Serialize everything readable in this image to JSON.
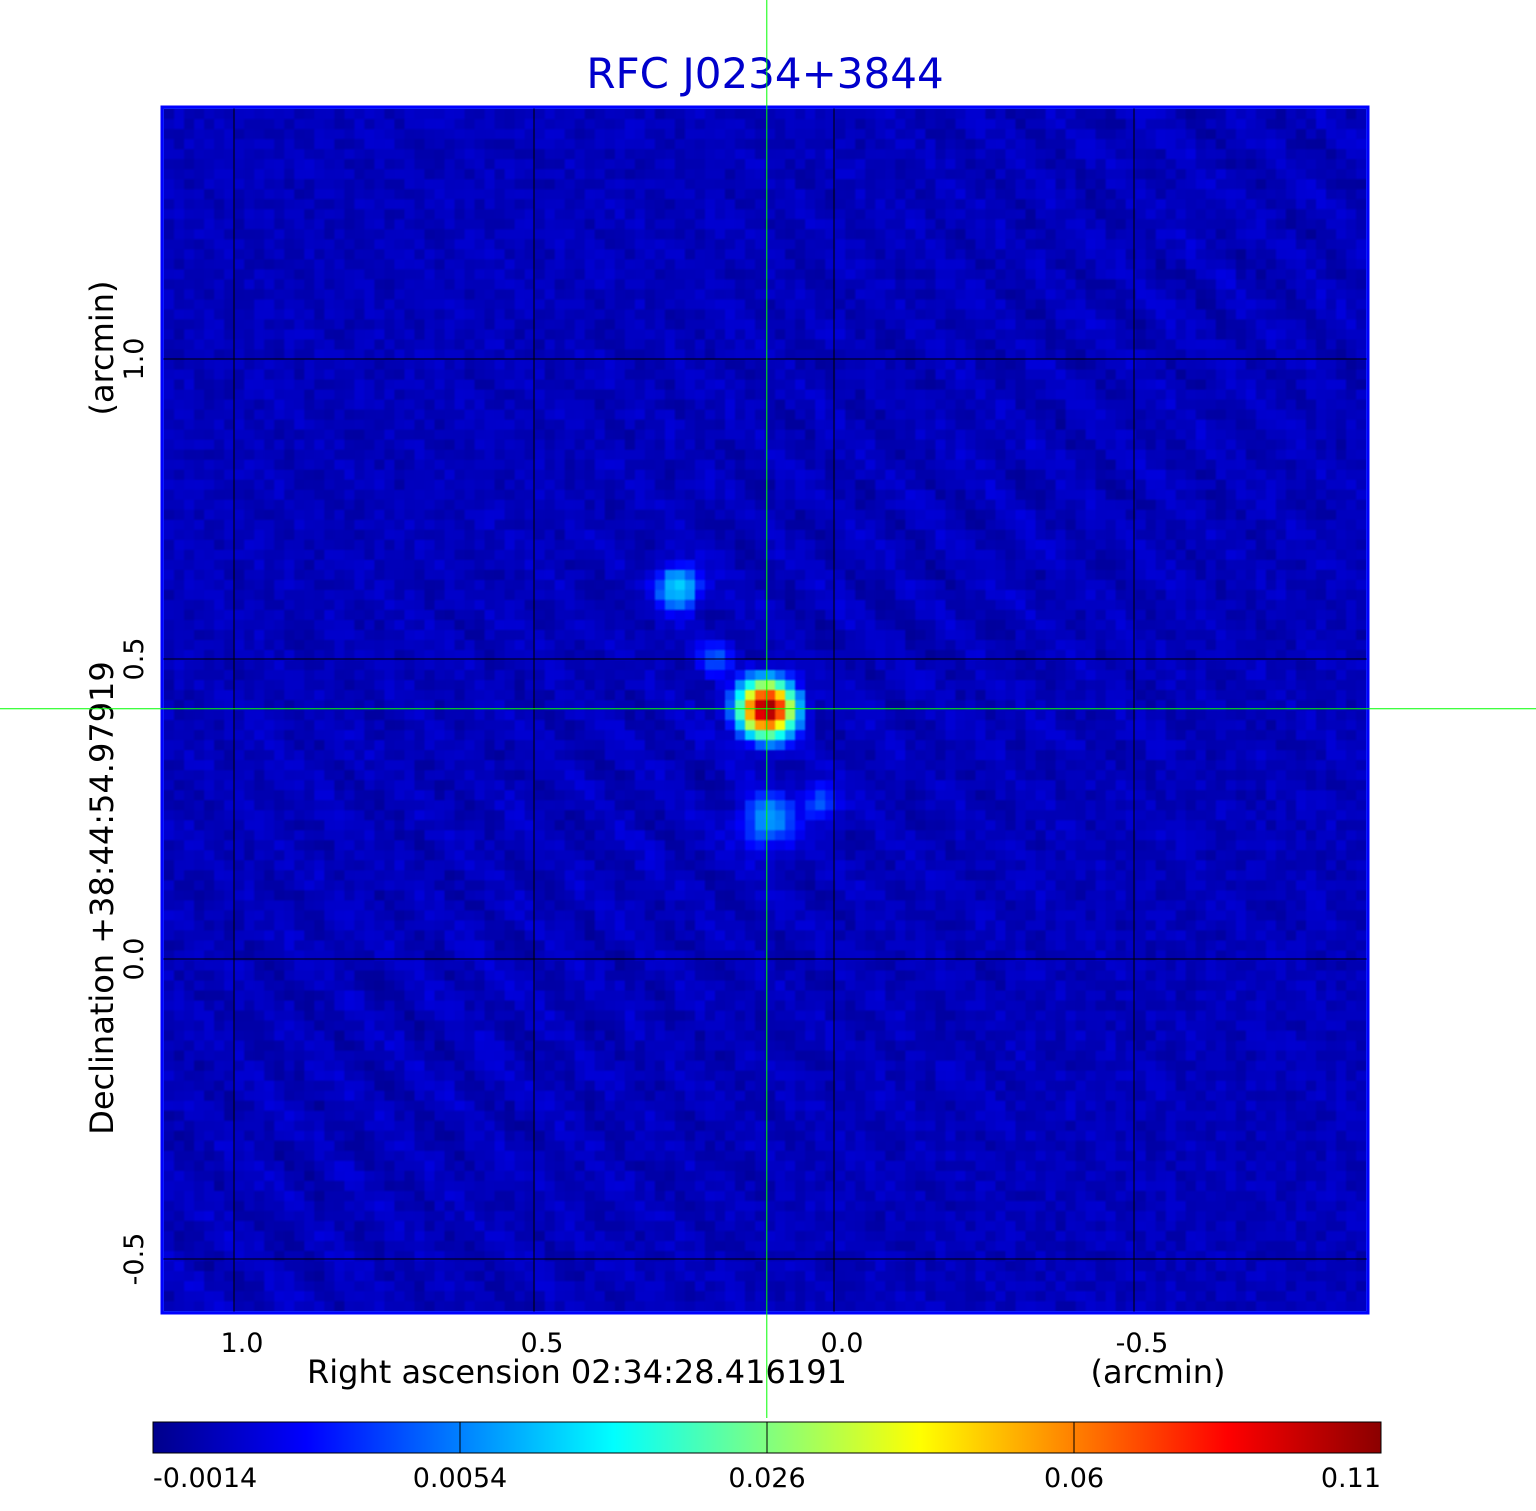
{
  "chart_data": {
    "type": "heatmap",
    "title": "RFC J0234+3844",
    "xlabel": "Right ascension  02:34:28.416191",
    "xunit": "(arcmin)",
    "ylabel": "Declination  +38:44:54.97919",
    "yunit": "(arcmin)",
    "x_ticks": [
      1.0,
      0.5,
      0.0,
      -0.5
    ],
    "x_tick_labels": [
      "1.0",
      "0.5",
      "0.0",
      "-0.5"
    ],
    "y_ticks": [
      1.0,
      0.5,
      0.0,
      -0.5
    ],
    "y_tick_labels": [
      "1.0",
      "0.5",
      "0.0",
      "-0.5"
    ],
    "xlim": [
      1.12,
      -0.89
    ],
    "ylim": [
      -0.59,
      1.42
    ],
    "grid": true,
    "crosshair": {
      "x": 0.112,
      "y": 0.417
    },
    "colorbar": {
      "tick_labels": [
        "-0.0014",
        "0.0054",
        "0.026",
        "0.06",
        "0.11"
      ],
      "tick_values": [
        -0.0014,
        0.0054,
        0.026,
        0.06,
        0.11
      ],
      "colormap": [
        "#00008b",
        "#0000ff",
        "#0080ff",
        "#00ffff",
        "#80ff80",
        "#ffff00",
        "#ff8000",
        "#ff0000",
        "#8b0000"
      ]
    },
    "background_level": 0.0,
    "sources": [
      {
        "x": 0.112,
        "y": 0.417,
        "peak": 0.11,
        "sigma": 0.025
      },
      {
        "x": 0.26,
        "y": 0.62,
        "peak": 0.012,
        "sigma": 0.022
      },
      {
        "x": 0.11,
        "y": 0.23,
        "peak": 0.007,
        "sigma": 0.03
      },
      {
        "x": 0.02,
        "y": 0.26,
        "peak": 0.005,
        "sigma": 0.02
      },
      {
        "x": 0.2,
        "y": 0.5,
        "peak": 0.004,
        "sigma": 0.02
      }
    ]
  },
  "colors": {
    "title": "#0000cc",
    "frame": "#0000ff",
    "grid": "#000000",
    "crosshair": "#00ff00"
  }
}
